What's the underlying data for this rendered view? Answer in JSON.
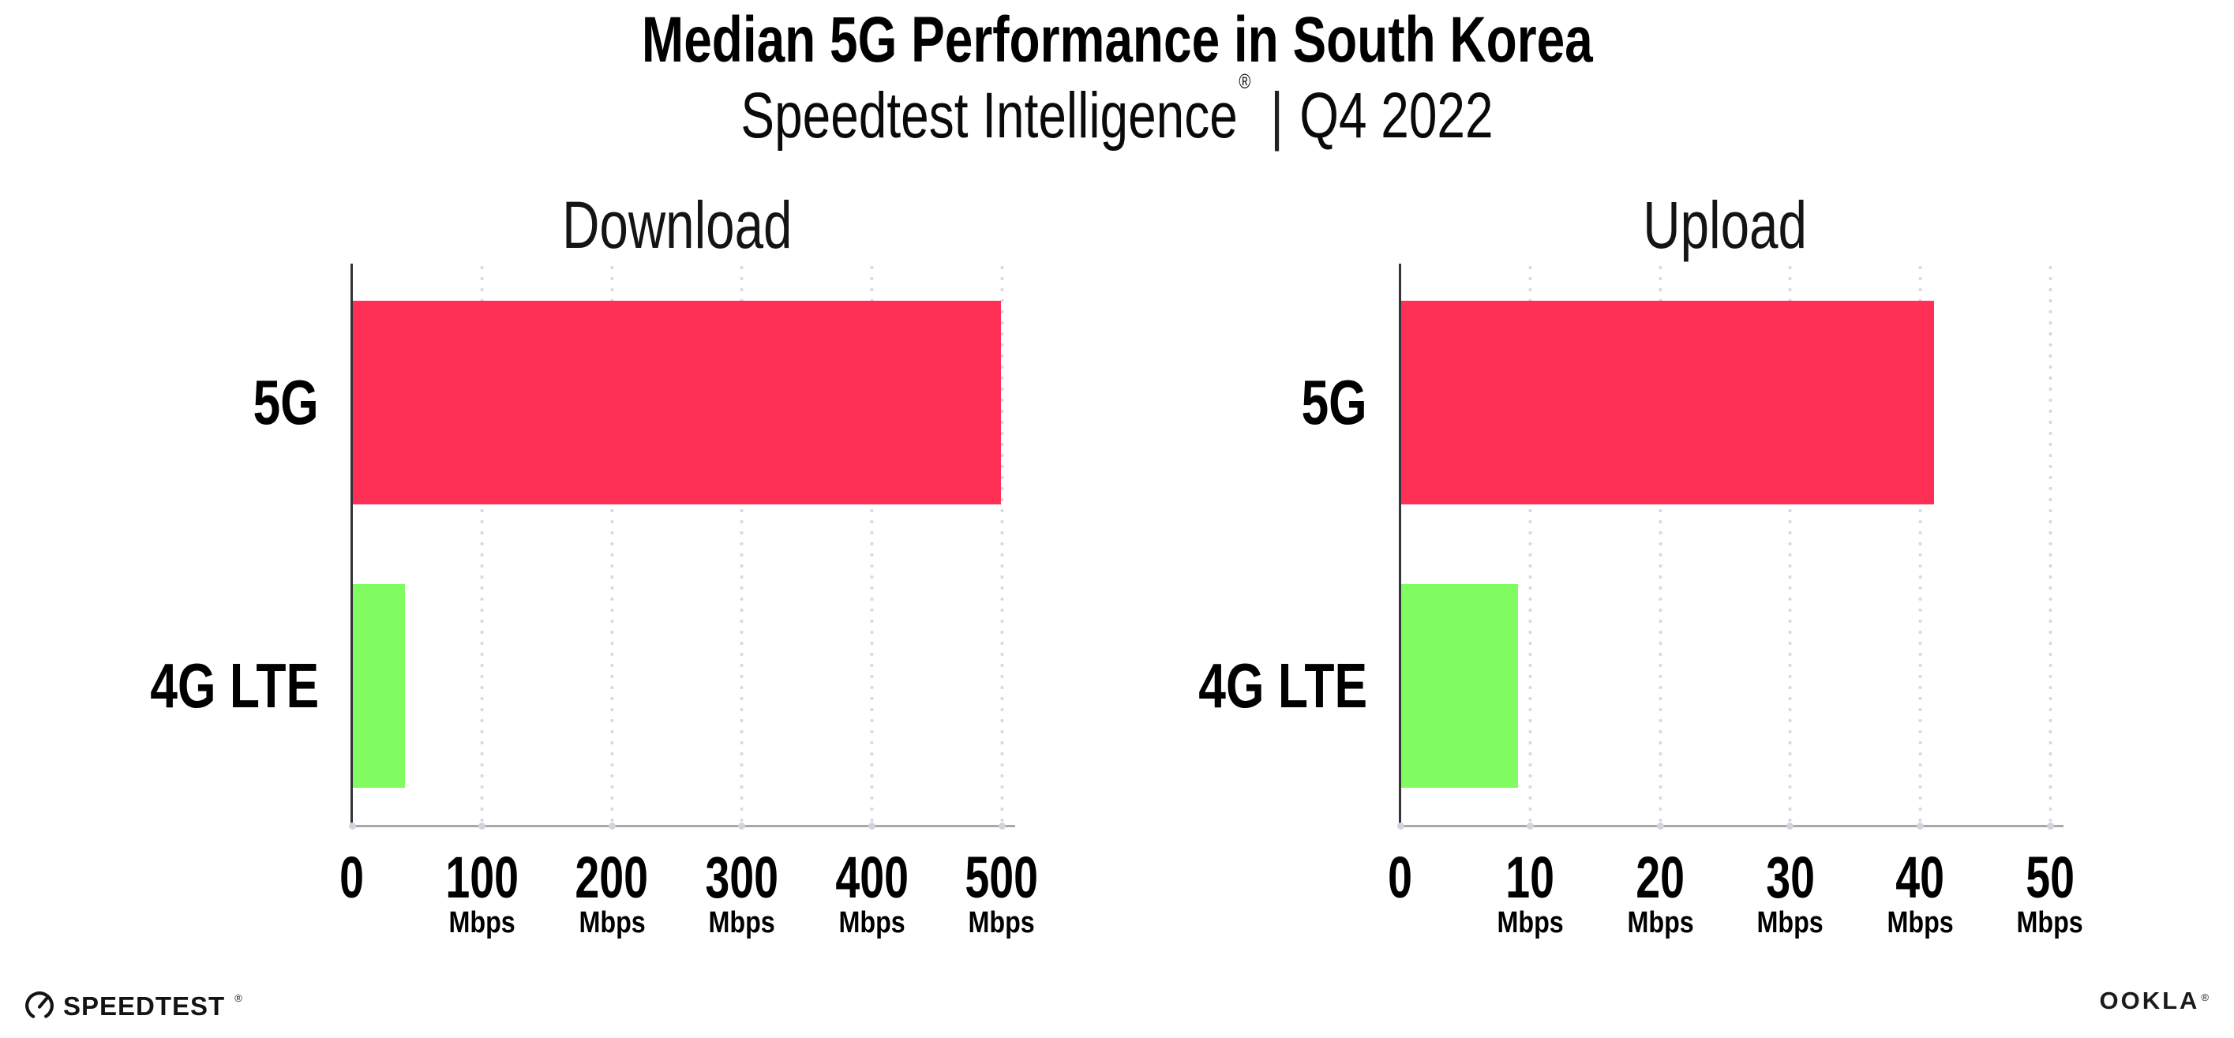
{
  "page": {
    "title": "Median 5G Performance in South Korea",
    "subtitle": {
      "brand": "Speedtest Intelligence",
      "reg_mark": "®",
      "separator": "|",
      "period": "Q4 2022"
    },
    "footer": {
      "speedtest_label": "SPEEDTEST",
      "speedtest_mark": "®",
      "ookla_label": "OOKLA",
      "ookla_mark": "®"
    }
  },
  "colors": {
    "bar_5g": "#FF2F55",
    "bar_4g_lte": "#80FB60",
    "gridline": "#D9D9E4",
    "x_axis": "#A7A7AD",
    "y_axis": "#33333A",
    "tick_dot": "#D3D3DF",
    "background": "#FFFFFF",
    "text": "#000000"
  },
  "chart_data": [
    {
      "type": "bar",
      "orientation": "horizontal",
      "title": "Download",
      "categories": [
        "5G",
        "4G LTE"
      ],
      "values": [
        499,
        40
      ],
      "unit": "Mbps",
      "xlim": [
        0,
        500
      ],
      "xticks": [
        0,
        100,
        200,
        300,
        400,
        500
      ],
      "grid": "dotted-vertical",
      "legend": "none",
      "bar_colors": [
        "#FF2F55",
        "#80FB60"
      ]
    },
    {
      "type": "bar",
      "orientation": "horizontal",
      "title": "Upload",
      "categories": [
        "5G",
        "4G LTE"
      ],
      "values": [
        41,
        9
      ],
      "unit": "Mbps",
      "xlim": [
        0,
        50
      ],
      "xticks": [
        0,
        10,
        20,
        30,
        40,
        50
      ],
      "grid": "dotted-vertical",
      "legend": "none",
      "bar_colors": [
        "#FF2F55",
        "#80FB60"
      ]
    }
  ]
}
